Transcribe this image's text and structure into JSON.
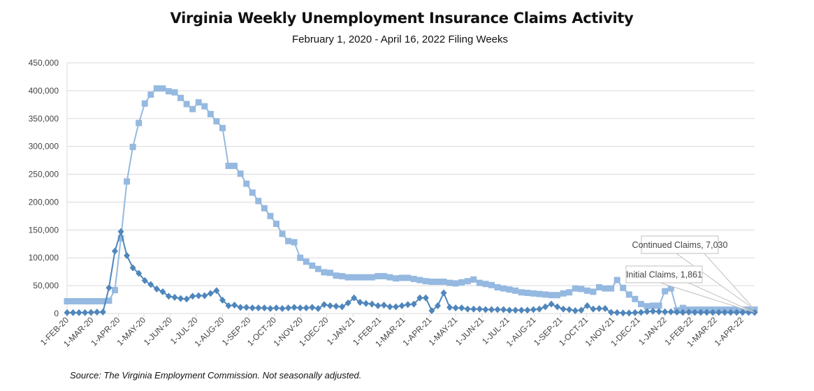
{
  "chart_data": {
    "type": "line",
    "title": "Virginia Weekly Unemployment Insurance Claims Activity",
    "subtitle": "February 1, 2020 - April 16, 2022 Filing Weeks",
    "source": "Source: The Virginia Employment Commission. Not seasonally adjusted.",
    "x_range": [
      "2020-02-01",
      "2022-04-16"
    ],
    "x_frequency": "weekly",
    "ylim": [
      0,
      450000
    ],
    "yticks": [
      "0",
      "50,000",
      "100,000",
      "150,000",
      "200,000",
      "250,000",
      "300,000",
      "350,000",
      "400,000",
      "450,000"
    ],
    "xticks": [
      "1-FEB-20",
      "1-MAR-20",
      "1-APR-20",
      "1-MAY-20",
      "1-JUN-20",
      "1-JUL-20",
      "1-AUG-20",
      "1-SEP-20",
      "1-OCT-20",
      "1-NOV-20",
      "1-DEC-20",
      "1-JAN-21",
      "1-FEB-21",
      "1-MAR-21",
      "1-APR-21",
      "1-MAY-21",
      "1-JUN-21",
      "1-JUL-21",
      "1-AUG-21",
      "1-SEP-21",
      "1-OCT-21",
      "1-NOV-21",
      "1-DEC-21",
      "1-JAN-22",
      "1-FEB-22",
      "1-MAR-22",
      "1-APR-22"
    ],
    "grid": true,
    "colors": {
      "continued": "#95B9E0",
      "initial": "#4F86BB",
      "grid": "#D9D9D9"
    },
    "series": [
      {
        "name": "Continued Claims",
        "marker": "square",
        "values": [
          22000,
          22000,
          22000,
          22000,
          22000,
          22000,
          22000,
          23000,
          42000,
          135000,
          237000,
          299000,
          342000,
          377000,
          393000,
          404000,
          404000,
          399000,
          397000,
          387000,
          376000,
          367000,
          379000,
          372000,
          358000,
          345000,
          333000,
          265000,
          265000,
          251000,
          233000,
          217000,
          202000,
          189000,
          175000,
          161000,
          143000,
          130000,
          128000,
          100000,
          93000,
          86000,
          80000,
          74000,
          73000,
          68000,
          67000,
          65000,
          65000,
          65000,
          65000,
          65000,
          67000,
          67000,
          65000,
          63000,
          64000,
          64000,
          62000,
          60000,
          58000,
          57000,
          57000,
          57000,
          55000,
          54000,
          56000,
          58000,
          61000,
          55000,
          53000,
          51000,
          47000,
          45000,
          43000,
          41000,
          38000,
          37000,
          36000,
          35000,
          34000,
          33000,
          33000,
          36000,
          38000,
          45000,
          44000,
          41000,
          39000,
          47000,
          45000,
          45000,
          60000,
          46000,
          34000,
          26000,
          17000,
          13000,
          14000,
          14000,
          40000,
          45000,
          6000,
          10000,
          7000,
          7000,
          7000,
          7000,
          7000,
          7000,
          7000,
          7000,
          7000,
          7000,
          7000,
          7030
        ]
      },
      {
        "name": "Initial Claims",
        "marker": "diamond",
        "values": [
          1500,
          1500,
          1600,
          1500,
          2000,
          2500,
          2700,
          46000,
          112000,
          147000,
          104000,
          82000,
          72000,
          59000,
          52000,
          44000,
          39000,
          31000,
          29000,
          27000,
          26000,
          31000,
          32000,
          32000,
          36000,
          41000,
          24000,
          14000,
          15000,
          11000,
          11000,
          10000,
          10000,
          10000,
          9000,
          10000,
          9000,
          10000,
          11000,
          10000,
          10000,
          11000,
          9000,
          16000,
          14000,
          13000,
          12000,
          19000,
          28000,
          20000,
          18000,
          17000,
          14000,
          15000,
          12000,
          12000,
          14000,
          16000,
          17000,
          28000,
          28000,
          5000,
          14000,
          37000,
          11000,
          10000,
          10000,
          8000,
          8000,
          8000,
          7000,
          7000,
          7000,
          7000,
          6000,
          6000,
          6000,
          6000,
          7000,
          8000,
          12000,
          17000,
          12000,
          8000,
          7000,
          5000,
          6000,
          14000,
          8000,
          9000,
          9000,
          2000,
          1500,
          1000,
          1000,
          1500,
          2000,
          3500,
          4000,
          3500,
          3000,
          3000,
          2500,
          2000,
          2500,
          2000,
          2000,
          2000,
          2000,
          2000,
          2000,
          2000,
          2000,
          2000,
          2000,
          1861
        ]
      }
    ],
    "annotations": [
      {
        "series": "Continued Claims",
        "text": "Continued Claims, 7,030"
      },
      {
        "series": "Initial Claims",
        "text": "Initial Claims, 1,861"
      }
    ]
  }
}
